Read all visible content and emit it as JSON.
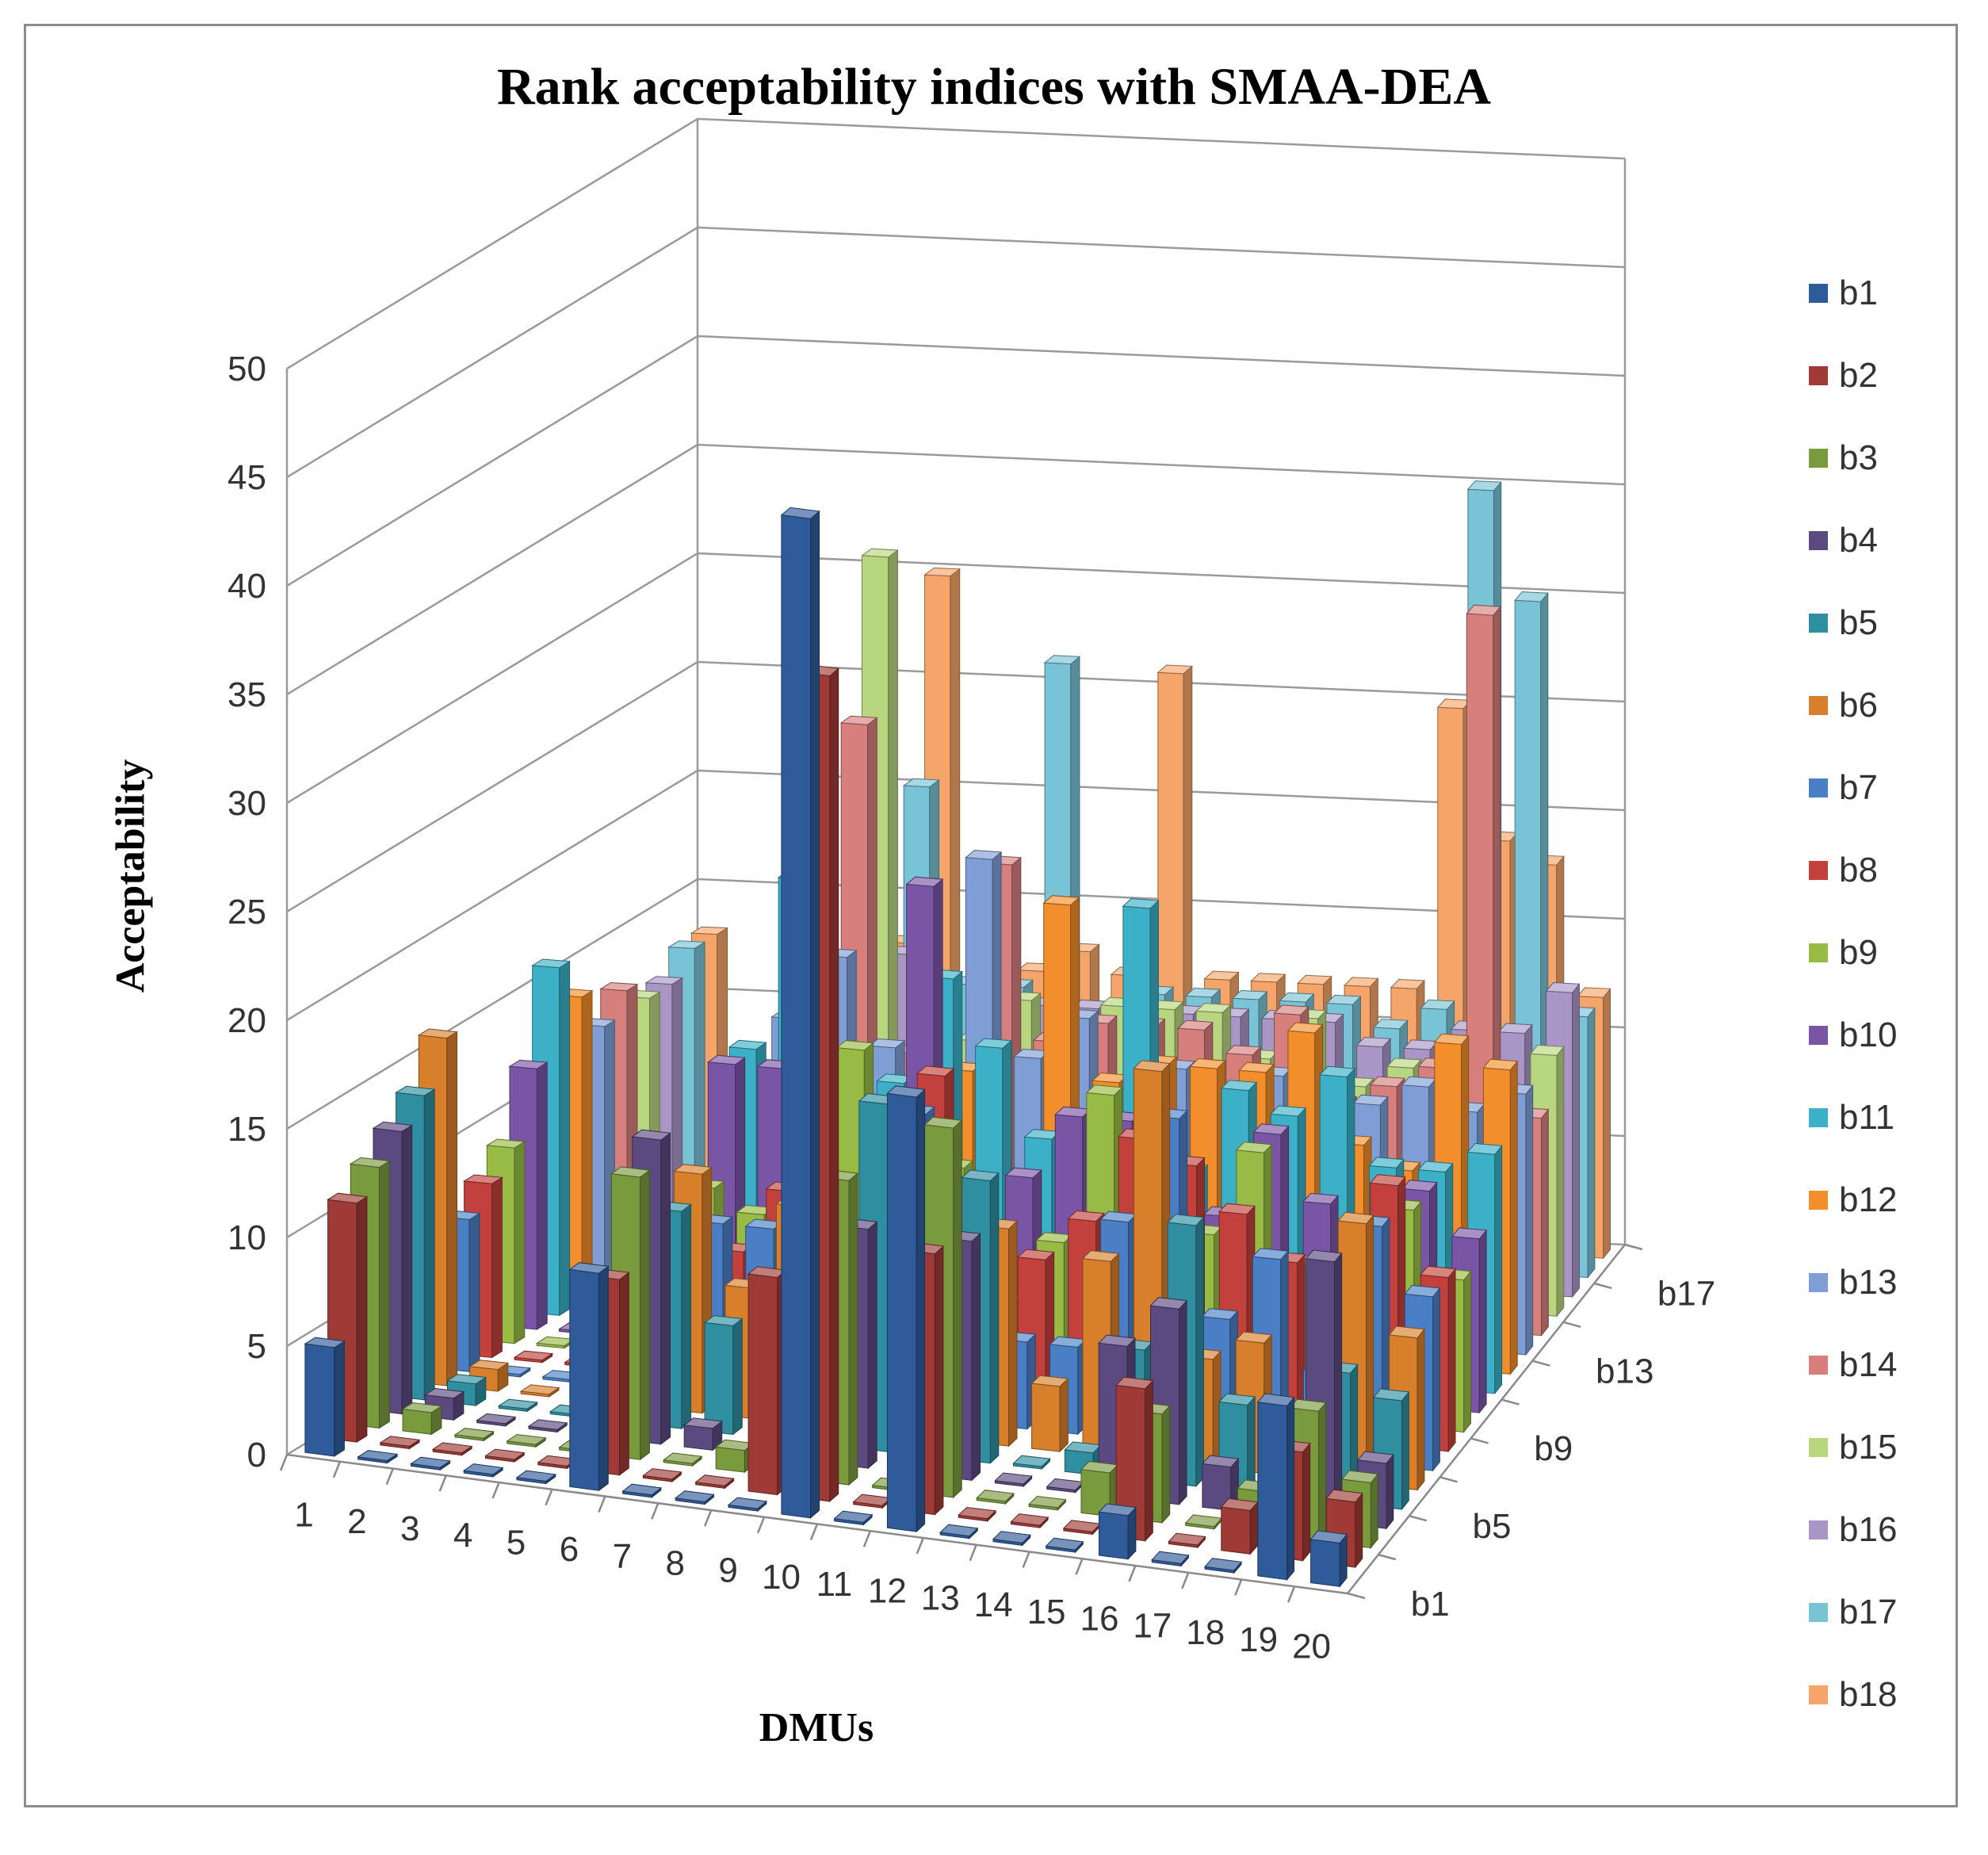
{
  "chart_data": {
    "type": "bar",
    "subtype": "3d-bar",
    "title": "Rank acceptability indices with SMAA-DEA",
    "xlabel": "DMUs",
    "ylabel": "Acceptability",
    "ylim": [
      0,
      50
    ],
    "yticks": [
      0,
      5,
      10,
      15,
      20,
      25,
      30,
      35,
      40,
      45,
      50
    ],
    "categories": [
      "1",
      "2",
      "3",
      "4",
      "5",
      "6",
      "7",
      "8",
      "9",
      "10",
      "11",
      "12",
      "13",
      "14",
      "15",
      "16",
      "17",
      "18",
      "19",
      "20"
    ],
    "depth_tick_labels": [
      "b1",
      "b5",
      "b9",
      "b13",
      "b17"
    ],
    "grid": true,
    "legend_position": "right",
    "series": [
      {
        "name": "b1",
        "color": "#2f5b9a",
        "values": [
          5,
          0,
          0,
          0,
          0,
          10,
          0,
          0,
          0,
          46,
          0,
          20,
          0,
          0,
          0,
          2,
          0,
          0,
          8,
          2
        ]
      },
      {
        "name": "b2",
        "color": "#a03a36",
        "values": [
          11,
          0,
          0,
          0,
          0,
          9,
          0,
          0,
          10,
          38,
          0,
          12,
          0,
          0,
          0,
          7,
          0,
          2,
          5,
          3
        ]
      },
      {
        "name": "b3",
        "color": "#7a9a3e",
        "values": [
          12,
          1,
          0,
          0,
          0,
          13,
          0,
          1,
          0,
          14,
          0,
          17,
          0,
          0,
          2,
          5,
          0,
          2,
          6,
          3
        ]
      },
      {
        "name": "b4",
        "color": "#5b4a80",
        "values": [
          13,
          1,
          0,
          0,
          0,
          14,
          1,
          0,
          1,
          11,
          1,
          11,
          0,
          0,
          7,
          9,
          2,
          0,
          12,
          3
        ]
      },
      {
        "name": "b5",
        "color": "#2f8ea0",
        "values": [
          14,
          1,
          0,
          0,
          0,
          10,
          5,
          0,
          0,
          16,
          0,
          13,
          0,
          1,
          6,
          12,
          4,
          0,
          6,
          5
        ]
      },
      {
        "name": "b6",
        "color": "#d77f2a",
        "values": [
          16,
          1,
          0,
          0,
          1,
          11,
          6,
          10,
          2,
          12,
          1,
          10,
          3,
          9,
          18,
          5,
          6,
          3,
          12,
          7
        ]
      },
      {
        "name": "b7",
        "color": "#4a7fc6",
        "values": [
          7,
          0,
          0,
          0,
          3,
          8,
          8,
          7,
          0,
          14,
          4,
          4,
          4,
          10,
          15,
          6,
          9,
          4,
          11,
          8
        ]
      },
      {
        "name": "b8",
        "color": "#c2413d",
        "values": [
          8,
          0,
          0,
          0,
          6,
          6,
          9,
          9,
          1,
          15,
          0,
          7,
          9,
          13,
          12,
          10,
          8,
          5,
          12,
          8
        ]
      },
      {
        "name": "b9",
        "color": "#98bb45",
        "values": [
          9,
          0,
          0,
          1,
          8,
          7,
          12,
          15,
          5,
          10,
          4,
          7,
          14,
          10,
          8,
          12,
          7,
          4,
          10,
          7
        ]
      },
      {
        "name": "b10",
        "color": "#7a55a6",
        "values": [
          12,
          0,
          0,
          1,
          13,
          13,
          7,
          9,
          22,
          8,
          9,
          12,
          12,
          7,
          8,
          12,
          9,
          7,
          10,
          8
        ]
      },
      {
        "name": "b11",
        "color": "#3bb0c7",
        "values": [
          16,
          0,
          0,
          1,
          13,
          21,
          6,
          12,
          17,
          14,
          10,
          11,
          21,
          9,
          13,
          12,
          14,
          10,
          10,
          11
        ]
      },
      {
        "name": "b12",
        "color": "#f28e2b",
        "values": [
          14,
          0,
          0,
          1,
          11,
          22,
          7,
          9,
          12,
          7,
          20,
          12,
          13,
          13,
          13,
          15,
          10,
          9,
          15,
          14
        ]
      },
      {
        "name": "b13",
        "color": "#7f9ed6",
        "values": [
          12,
          0,
          1,
          1,
          13,
          16,
          12,
          11,
          21,
          12,
          14,
          11,
          12,
          11,
          12,
          12,
          11,
          12,
          11,
          12
        ]
      },
      {
        "name": "b14",
        "color": "#d67f7d",
        "values": [
          13,
          0,
          1,
          1,
          12,
          26,
          11,
          9,
          20,
          12,
          13,
          13,
          13,
          12,
          14,
          10,
          11,
          12,
          33,
          10
        ]
      },
      {
        "name": "b15",
        "color": "#b8d57f",
        "values": [
          12,
          0,
          1,
          1,
          12,
          33,
          10,
          11,
          13,
          12,
          13,
          13,
          13,
          11,
          13,
          10,
          11,
          10,
          11,
          12
        ]
      },
      {
        "name": "b16",
        "color": "#a996c7",
        "values": [
          12,
          0,
          1,
          2,
          12,
          14,
          10,
          12,
          12,
          12,
          12,
          12,
          12,
          12,
          12,
          11,
          11,
          12,
          12,
          14
        ]
      },
      {
        "name": "b17",
        "color": "#79c3d6",
        "values": [
          13,
          0,
          1,
          2,
          13,
          21,
          12,
          12,
          27,
          11,
          12,
          12,
          12,
          12,
          12,
          11,
          12,
          36,
          31,
          12
        ]
      },
      {
        "name": "b18",
        "color": "#f5a56a",
        "values": [
          13,
          0,
          1,
          2,
          13,
          30,
          12,
          12,
          13,
          12,
          26,
          12,
          12,
          12,
          12,
          12,
          25,
          19,
          18,
          12
        ]
      }
    ]
  }
}
